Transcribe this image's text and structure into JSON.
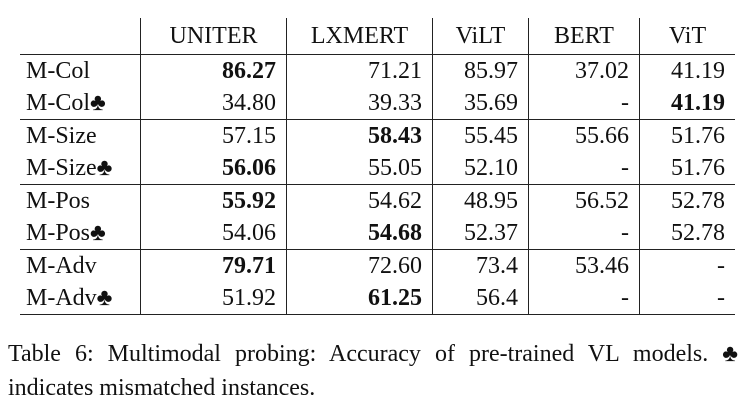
{
  "table": {
    "columns": [
      "UNITER",
      "LXMERT",
      "ViLT",
      "BERT",
      "ViT"
    ],
    "rows": [
      [
        "M-Col",
        "86.27",
        "71.21",
        "85.97",
        "37.02",
        "41.19"
      ],
      [
        "M-Col♣",
        "34.80",
        "39.33",
        "35.69",
        "-",
        "41.19"
      ],
      [
        "M-Size",
        "57.15",
        "58.43",
        "55.45",
        "55.66",
        "51.76"
      ],
      [
        "M-Size♣",
        "56.06",
        "55.05",
        "52.10",
        "-",
        "51.76"
      ],
      [
        "M-Pos",
        "55.92",
        "54.62",
        "48.95",
        "56.52",
        "52.78"
      ],
      [
        "M-Pos♣",
        "54.06",
        "54.68",
        "52.37",
        "-",
        "52.78"
      ],
      [
        "M-Adv",
        "79.71",
        "72.60",
        "73.4",
        "53.46",
        "-"
      ],
      [
        "M-Adv♣",
        "51.92",
        "61.25",
        "56.4",
        "-",
        "-"
      ]
    ]
  },
  "caption": "Table 6: Multimodal probing: Accuracy of pre-trained VL models. ♣ indicates mismatched instances."
}
